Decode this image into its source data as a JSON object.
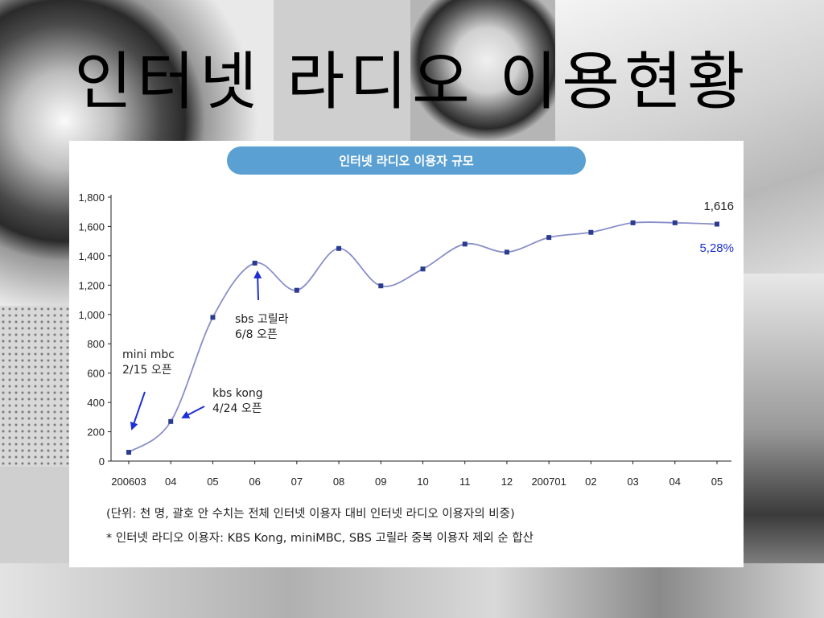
{
  "slide": {
    "title": "인터넷 라디오 이용현황"
  },
  "chart_data": {
    "type": "line",
    "title": "인터넷 라디오 이용자 규모",
    "categories": [
      "200603",
      "04",
      "05",
      "06",
      "07",
      "08",
      "09",
      "10",
      "11",
      "12",
      "200701",
      "02",
      "03",
      "04",
      "05"
    ],
    "series": [
      {
        "values": [
          60,
          270,
          980,
          1350,
          1165,
          1450,
          1195,
          1310,
          1480,
          1425,
          1525,
          1560,
          1625,
          1625,
          1616
        ]
      }
    ],
    "ylim": [
      0,
      1800
    ],
    "yticks": [
      "0",
      "200",
      "400",
      "600",
      "800",
      "1,000",
      "1,200",
      "1,400",
      "1,600",
      "1,800"
    ],
    "xlabel": "",
    "ylabel": "",
    "grid": false,
    "end_value_label": "1,616",
    "end_percent_label": "5,28%",
    "annotations": [
      {
        "lines": [
          "mini mbc",
          "2/15 오픈"
        ],
        "target_index": 0
      },
      {
        "lines": [
          "kbs kong",
          "4/24 오픈"
        ],
        "target_index": 1
      },
      {
        "lines": [
          "sbs 고릴라",
          "6/8 오픈"
        ],
        "target_index": 3
      }
    ],
    "notes": [
      "(단위: 천 명, 괄호 안 수치는 전체 인터넷 이용자 대비 인터넷 라디오 이용자의 비중)",
      "* 인터넷 라디오 이용자: KBS Kong, miniMBC, SBS 고릴라 중복 이용자 제외 순 합산"
    ],
    "colors": {
      "line": "#8a8ec9",
      "marker": "#2b3c8f",
      "arrow": "#1f2fd6",
      "pill": "#5aa0d3",
      "percent": "#1a2fd0"
    }
  }
}
